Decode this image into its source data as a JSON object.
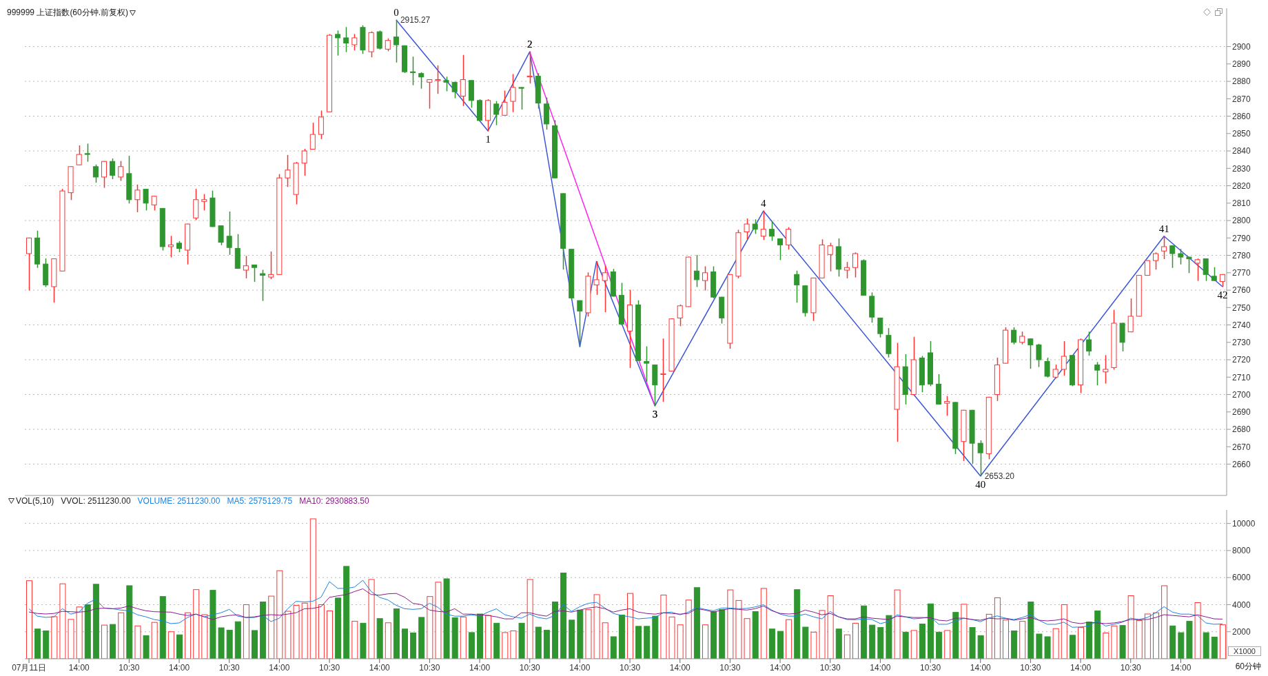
{
  "chart_data": [
    {
      "type": "candlestick",
      "title": "999999 上证指数(60分钟.前复权)",
      "annotations": [
        {
          "text": "0",
          "y": 2915.27
        },
        {
          "text": "1",
          "y": 2851.5
        },
        {
          "text": "2",
          "y": 2897
        },
        {
          "text": "3",
          "y": 2693.5
        },
        {
          "text": "4",
          "y": 2805.5
        },
        {
          "text": "40",
          "y": 2653.2
        },
        {
          "text": "41",
          "y": 2791
        },
        {
          "text": "42",
          "y": 2762
        }
      ],
      "ohlc": [
        [
          2781,
          2790,
          2760,
          2790
        ],
        [
          2790,
          2794,
          2773,
          2775
        ],
        [
          2775,
          2778,
          2762,
          2763
        ],
        [
          2762,
          2778,
          2753,
          2778
        ],
        [
          2771,
          2818,
          2771,
          2817
        ],
        [
          2816,
          2831,
          2812,
          2831
        ],
        [
          2832,
          2843,
          2832,
          2838
        ],
        [
          2838.5,
          2844,
          2834,
          2838
        ],
        [
          2831,
          2832,
          2822,
          2825
        ],
        [
          2825,
          2834,
          2819,
          2834
        ],
        [
          2834,
          2835.5,
          2824,
          2826
        ],
        [
          2825,
          2834,
          2823,
          2831
        ],
        [
          2827,
          2837,
          2810,
          2812
        ],
        [
          2812,
          2820.5,
          2805,
          2817.5
        ],
        [
          2818,
          2818,
          2806,
          2810
        ],
        [
          2809,
          2814,
          2806,
          2814
        ],
        [
          2807,
          2807,
          2783,
          2785
        ],
        [
          2785,
          2791,
          2779,
          2786
        ],
        [
          2787,
          2788,
          2782,
          2784
        ],
        [
          2783,
          2798,
          2775,
          2798
        ],
        [
          2801.5,
          2818,
          2800.5,
          2812
        ],
        [
          2811,
          2815,
          2806,
          2812
        ],
        [
          2813,
          2817,
          2796.5,
          2796.5
        ],
        [
          2797,
          2797,
          2786,
          2787.5
        ],
        [
          2791,
          2805,
          2780.5,
          2784.5
        ],
        [
          2784,
          2792,
          2772.5,
          2772.5
        ],
        [
          2771.5,
          2779.5,
          2767,
          2774
        ],
        [
          2774.5,
          2774.5,
          2765,
          2773
        ],
        [
          2769.5,
          2771.5,
          2754,
          2768.5
        ],
        [
          2767.5,
          2782,
          2766.5,
          2769
        ],
        [
          2769,
          2826.5,
          2769,
          2824.5
        ],
        [
          2824.5,
          2837.5,
          2819.5,
          2829
        ],
        [
          2815,
          2833.5,
          2809.5,
          2833
        ],
        [
          2833,
          2841,
          2826,
          2840
        ],
        [
          2841,
          2856,
          2841,
          2849.5
        ],
        [
          2849.5,
          2863,
          2847,
          2859.5
        ],
        [
          2862.5,
          2907,
          2862.5,
          2906.5
        ],
        [
          2907,
          2909,
          2895,
          2905
        ],
        [
          2905,
          2911,
          2897,
          2902
        ],
        [
          2901,
          2907,
          2898,
          2905
        ],
        [
          2911,
          2912,
          2896,
          2898
        ],
        [
          2897,
          2908.5,
          2894,
          2908
        ],
        [
          2908.5,
          2909,
          2898.5,
          2899
        ],
        [
          2898.5,
          2904.5,
          2897.5,
          2903.5
        ],
        [
          2905.5,
          2915.27,
          2891,
          2901
        ],
        [
          2900.5,
          2900.5,
          2885,
          2885.5
        ],
        [
          2885.5,
          2894,
          2878,
          2885
        ],
        [
          2884.5,
          2885,
          2876,
          2882.5
        ],
        [
          2879.5,
          2881,
          2864.5,
          2881
        ],
        [
          2880.5,
          2889,
          2873,
          2881
        ],
        [
          2880.5,
          2882.5,
          2874.5,
          2879.5
        ],
        [
          2879.5,
          2879.5,
          2870.5,
          2874
        ],
        [
          2871.5,
          2895,
          2866,
          2881
        ],
        [
          2880.5,
          2880.5,
          2865,
          2869
        ],
        [
          2869,
          2869.5,
          2857.5,
          2857.5
        ],
        [
          2857.5,
          2869.5,
          2851.5,
          2869
        ],
        [
          2867,
          2868.5,
          2855,
          2861
        ],
        [
          2860.5,
          2874.5,
          2860.5,
          2868
        ],
        [
          2868.5,
          2884,
          2862.5,
          2876.5
        ],
        [
          2876.5,
          2876.5,
          2864,
          2876
        ],
        [
          2882.5,
          2897,
          2879,
          2883
        ],
        [
          2883,
          2884.5,
          2864.5,
          2867.5
        ],
        [
          2867,
          2870.5,
          2852.5,
          2855.5
        ],
        [
          2854.5,
          2857.5,
          2824.5,
          2824.5
        ],
        [
          2815.5,
          2815.5,
          2772,
          2784
        ],
        [
          2783.5,
          2783.5,
          2755.5,
          2755.5
        ],
        [
          2754,
          2754,
          2727.5,
          2748
        ],
        [
          2747,
          2770,
          2745,
          2768
        ],
        [
          2763,
          2776.5,
          2757.5,
          2766
        ],
        [
          2765.5,
          2774,
          2747.5,
          2770
        ],
        [
          2770.5,
          2772,
          2756.5,
          2756.5
        ],
        [
          2757,
          2764,
          2740.5,
          2740.5
        ],
        [
          2736.5,
          2760,
          2715.5,
          2751.5
        ],
        [
          2751.5,
          2754,
          2719.5,
          2719.5
        ],
        [
          2719,
          2727.5,
          2707.5,
          2718
        ],
        [
          2717,
          2717,
          2693.5,
          2705.5
        ],
        [
          2711.5,
          2732,
          2696,
          2712
        ],
        [
          2713.5,
          2743.5,
          2713.5,
          2743.5
        ],
        [
          2744,
          2751.5,
          2739.5,
          2751
        ],
        [
          2750.5,
          2779,
          2750.5,
          2779
        ],
        [
          2771,
          2780,
          2762,
          2766
        ],
        [
          2765.5,
          2773.5,
          2760,
          2770
        ],
        [
          2770.5,
          2773.5,
          2755.5,
          2756
        ],
        [
          2756,
          2756,
          2741,
          2744
        ],
        [
          2729.5,
          2769,
          2726.5,
          2769
        ],
        [
          2768,
          2794.5,
          2767,
          2793
        ],
        [
          2793.5,
          2801,
          2789.5,
          2798
        ],
        [
          2798,
          2800.5,
          2792.5,
          2795
        ],
        [
          2791,
          2805.5,
          2789,
          2795
        ],
        [
          2795,
          2799.5,
          2788.5,
          2791
        ],
        [
          2789.5,
          2789.5,
          2777.5,
          2786
        ],
        [
          2786,
          2796,
          2783.5,
          2795
        ],
        [
          2769,
          2771,
          2753,
          2763
        ],
        [
          2762.5,
          2762.5,
          2745,
          2747
        ],
        [
          2747,
          2767,
          2742.5,
          2767
        ],
        [
          2767,
          2789,
          2767,
          2786
        ],
        [
          2780.5,
          2787,
          2771,
          2785.5
        ],
        [
          2785,
          2789.5,
          2768,
          2772
        ],
        [
          2771.5,
          2776,
          2767,
          2773
        ],
        [
          2773,
          2781.5,
          2767.5,
          2781
        ],
        [
          2777,
          2777.5,
          2757,
          2757
        ],
        [
          2756.5,
          2758.5,
          2741.5,
          2744.5
        ],
        [
          2744,
          2744,
          2733,
          2735
        ],
        [
          2734,
          2738,
          2721.5,
          2723.5
        ],
        [
          2691.5,
          2729.5,
          2673,
          2716
        ],
        [
          2716,
          2723,
          2694.5,
          2700
        ],
        [
          2700,
          2733,
          2700,
          2720
        ],
        [
          2721,
          2722,
          2701.5,
          2705.5
        ],
        [
          2724,
          2730.5,
          2705,
          2706
        ],
        [
          2706,
          2711.5,
          2694.5,
          2694.5
        ],
        [
          2695,
          2699,
          2688,
          2696
        ],
        [
          2695.5,
          2695.5,
          2666,
          2669
        ],
        [
          2673,
          2691,
          2662,
          2691
        ],
        [
          2691,
          2691,
          2660.5,
          2672
        ],
        [
          2672,
          2673.5,
          2653.2,
          2666.5
        ],
        [
          2666,
          2698.5,
          2663,
          2698.5
        ],
        [
          2700,
          2721,
          2696.5,
          2717
        ],
        [
          2718,
          2738.5,
          2718,
          2737
        ],
        [
          2737,
          2738.5,
          2729,
          2730
        ],
        [
          2730,
          2736,
          2729,
          2733.5
        ],
        [
          2732,
          2732,
          2715,
          2728.5
        ],
        [
          2728.5,
          2729,
          2716,
          2720
        ],
        [
          2719,
          2721,
          2710,
          2710.5
        ],
        [
          2710,
          2717,
          2709.5,
          2714.5
        ],
        [
          2714.5,
          2730.5,
          2711,
          2722
        ],
        [
          2722.5,
          2722.5,
          2705,
          2705.5
        ],
        [
          2705.5,
          2732,
          2701,
          2731.5
        ],
        [
          2731.5,
          2736,
          2722.5,
          2725
        ],
        [
          2717,
          2718.5,
          2705.5,
          2714
        ],
        [
          2713,
          2722.5,
          2706.5,
          2714.5
        ],
        [
          2715.5,
          2748.5,
          2714.5,
          2741
        ],
        [
          2741,
          2741,
          2725,
          2730
        ],
        [
          2736,
          2755,
          2736,
          2745
        ],
        [
          2745,
          2768.5,
          2745,
          2768.5
        ],
        [
          2768.5,
          2777,
          2768.5,
          2777
        ],
        [
          2777,
          2781.5,
          2772,
          2781
        ],
        [
          2782.5,
          2791,
          2778,
          2785
        ],
        [
          2785.5,
          2785.5,
          2773,
          2781
        ],
        [
          2781,
          2783.5,
          2775,
          2779
        ],
        [
          2779,
          2779,
          2770,
          2778
        ],
        [
          2775.5,
          2778,
          2765.5,
          2777.5
        ],
        [
          2778,
          2778,
          2765.5,
          2769
        ],
        [
          2768,
          2773,
          2765.5,
          2765.5
        ],
        [
          2765,
          2769,
          2762,
          2769
        ]
      ],
      "colors": [
        "#ff3232",
        "#2f962f",
        "#2f962f",
        "#ff3232",
        "#ff3232",
        "#ff3232",
        "#ff3232",
        "#2f962f",
        "#2f962f",
        "#ff3232",
        "#2f962f",
        "#ff3232",
        "#2f962f",
        "#ff3232",
        "#2f962f",
        "#ff3232",
        "#2f962f",
        "#ff3232",
        "#2f962f",
        "#ff3232",
        "#ff3232",
        "#ff3232",
        "#2f962f",
        "#2f962f",
        "#2f962f",
        "#2f962f",
        "#ff3232",
        "#2f962f",
        "#2f962f",
        "#ff3232",
        "#ff3232",
        "#ff3232",
        "#ff3232",
        "#ff3232",
        "#ff3232",
        "#ff3232",
        "#ff3232",
        "#2f962f",
        "#2f962f",
        "#ff3232",
        "#2f962f",
        "#ff3232",
        "#2f962f",
        "#ff3232",
        "#2f962f",
        "#2f962f",
        "#2f962f",
        "#2f962f",
        "#ff3232",
        "#ff3232",
        "#2f962f",
        "#2f962f",
        "#ff3232",
        "#2f962f",
        "#2f962f",
        "#ff3232",
        "#2f962f",
        "#ff3232",
        "#ff3232",
        "#2f962f",
        "#ff3232",
        "#2f962f",
        "#2f962f",
        "#2f962f",
        "#2f962f",
        "#2f962f",
        "#2f962f",
        "#ff3232",
        "#ff3232",
        "#ff3232",
        "#2f962f",
        "#2f962f",
        "#ff3232",
        "#2f962f",
        "#2f962f",
        "#2f962f",
        "#ff3232",
        "#ff3232",
        "#ff3232",
        "#ff3232",
        "#2f962f",
        "#ff3232",
        "#2f962f",
        "#2f962f",
        "#ff3232",
        "#ff3232",
        "#ff3232",
        "#2f962f",
        "#ff3232",
        "#2f962f",
        "#2f962f",
        "#ff3232",
        "#2f962f",
        "#2f962f",
        "#ff3232",
        "#ff3232",
        "#ff3232",
        "#2f962f",
        "#ff3232",
        "#ff3232",
        "#2f962f",
        "#2f962f",
        "#2f962f",
        "#2f962f",
        "#ff3232",
        "#2f962f",
        "#ff3232",
        "#2f962f",
        "#2f962f",
        "#2f962f",
        "#ff3232",
        "#2f962f",
        "#ff3232",
        "#2f962f",
        "#2f962f",
        "#ff3232",
        "#ff3232",
        "#ff3232",
        "#2f962f",
        "#ff3232",
        "#2f962f",
        "#2f962f",
        "#2f962f",
        "#ff3232",
        "#ff3232",
        "#2f962f",
        "#ff3232",
        "#2f962f",
        "#2f962f",
        "#ff3232",
        "#ff3232",
        "#2f962f",
        "#ff3232",
        "#ff3232",
        "#ff3232",
        "#ff3232",
        "#ff3232",
        "#2f962f",
        "#2f962f",
        "#2f962f",
        "#ff3232",
        "#2f962f",
        "#2f962f",
        "#ff3232"
      ],
      "value_labels": [
        null,
        null,
        null,
        null,
        null,
        null,
        null,
        null,
        null,
        null,
        null,
        null,
        null,
        null,
        null,
        null,
        null,
        null,
        null,
        null,
        null,
        null,
        null,
        null,
        null,
        null,
        null,
        null,
        null,
        null,
        null,
        null,
        null,
        null,
        null,
        null,
        null,
        null,
        null,
        null,
        null,
        null,
        null,
        null,
        "2915.27",
        null,
        null,
        null,
        null,
        null,
        null,
        null,
        null,
        null,
        null,
        null,
        null,
        null,
        null,
        null,
        null,
        null,
        null,
        null,
        null,
        null,
        null,
        null,
        null,
        null,
        null,
        null,
        null,
        null,
        null,
        null,
        null,
        null,
        null,
        null,
        null,
        null,
        null,
        null,
        null,
        null,
        null,
        null,
        null,
        null,
        null,
        null,
        null,
        null,
        null,
        null,
        null,
        null,
        null,
        null,
        null,
        null,
        null,
        null,
        null,
        null,
        null,
        null,
        null,
        null,
        null,
        null,
        null,
        null,
        "2653.20",
        null,
        null,
        null,
        null,
        null,
        null,
        null,
        null,
        null,
        null,
        null,
        null,
        null,
        null,
        null,
        null,
        null,
        null,
        null,
        null,
        null,
        null,
        null,
        null,
        null,
        null,
        null,
        null,
        null
      ],
      "series": [
        {
          "type": "line",
          "color": "#3a55d8",
          "values": [
            null,
            null,
            null,
            null,
            null,
            null,
            null,
            null,
            null,
            null,
            null,
            null,
            null,
            null,
            null,
            null,
            null,
            null,
            null,
            null,
            null,
            null,
            null,
            null,
            null,
            null,
            null,
            null,
            null,
            null,
            null,
            null,
            null,
            null,
            null,
            null,
            null,
            null,
            null,
            null,
            null,
            null,
            null,
            null,
            2915.27,
            null,
            null,
            null,
            null,
            null,
            null,
            null,
            null,
            null,
            null,
            2851.5,
            null,
            null,
            null,
            null,
            2897,
            null,
            null,
            null,
            null,
            null,
            2727.5,
            null,
            2776.5,
            null,
            null,
            null,
            null,
            null,
            null,
            2693.5,
            null,
            null,
            null,
            null,
            null,
            null,
            null,
            null,
            null,
            null,
            null,
            null,
            2805.5,
            null,
            null,
            null,
            null,
            null,
            null,
            null,
            null,
            null,
            null,
            null,
            null,
            null,
            null,
            null,
            null,
            null,
            null,
            null,
            null,
            null,
            null,
            null,
            null,
            null,
            2653.2,
            null,
            null,
            null,
            null,
            null,
            null,
            null,
            null,
            null,
            null,
            null,
            null,
            null,
            null,
            null,
            null,
            null,
            null,
            null,
            null,
            null,
            2791,
            null,
            null,
            null,
            null,
            null,
            null,
            2762
          ]
        },
        {
          "type": "line",
          "color": "#ff22ee",
          "values": [
            null,
            null,
            null,
            null,
            null,
            null,
            null,
            null,
            null,
            null,
            null,
            null,
            null,
            null,
            null,
            null,
            null,
            null,
            null,
            null,
            null,
            null,
            null,
            null,
            null,
            null,
            null,
            null,
            null,
            null,
            null,
            null,
            null,
            null,
            null,
            null,
            null,
            null,
            null,
            null,
            null,
            null,
            null,
            null,
            null,
            null,
            null,
            null,
            null,
            null,
            null,
            null,
            null,
            null,
            null,
            null,
            null,
            null,
            null,
            null,
            2897,
            null,
            null,
            null,
            null,
            null,
            null,
            null,
            null,
            null,
            null,
            null,
            null,
            null,
            null,
            2693.5,
            null,
            null,
            null,
            null,
            null,
            null,
            null,
            null,
            null,
            null,
            null,
            null,
            null,
            null,
            null,
            null,
            null,
            null,
            null,
            null,
            null,
            null,
            null,
            null,
            null,
            null,
            null,
            null,
            null,
            null,
            null,
            null,
            null,
            null,
            null,
            null,
            null,
            null,
            null,
            null,
            null,
            null,
            null,
            null,
            null,
            null,
            null,
            null,
            null,
            null,
            null,
            null,
            null,
            null,
            null,
            null,
            null,
            null,
            null,
            null,
            null,
            null,
            null,
            null,
            null,
            null,
            null,
            null
          ]
        }
      ],
      "ylim": [
        2642,
        2922
      ],
      "yticks": [
        2660,
        2670,
        2680,
        2690,
        2700,
        2710,
        2720,
        2730,
        2740,
        2750,
        2760,
        2770,
        2780,
        2790,
        2800,
        2810,
        2820,
        2830,
        2840,
        2850,
        2860,
        2870,
        2880,
        2890,
        2900
      ],
      "grid": "y",
      "tick_labels": "y"
    },
    {
      "type": "bar",
      "title": "VOL(5,10)",
      "xlabel": "60分钟",
      "ylabel": "X1000",
      "annotations": [
        "VVOL: 2511230.00",
        "VOLUME: 2511230.00"
      ],
      "categories": [
        "07月11日",
        null,
        null,
        null,
        null,
        null,
        "14:00",
        null,
        null,
        null,
        null,
        null,
        "10:30",
        null,
        null,
        null,
        null,
        null,
        "14:00",
        null,
        null,
        null,
        null,
        null,
        "10:30",
        null,
        null,
        null,
        null,
        null,
        "14:00",
        null,
        null,
        null,
        null,
        null,
        "10:30",
        null,
        null,
        null,
        null,
        null,
        "14:00",
        null,
        null,
        null,
        null,
        null,
        "10:30",
        null,
        null,
        null,
        null,
        null,
        "14:00",
        null,
        null,
        null,
        null,
        null,
        "10:30",
        null,
        null,
        null,
        null,
        null,
        "14:00",
        null,
        null,
        null,
        null,
        null,
        "10:30",
        null,
        null,
        null,
        null,
        null,
        "14:00",
        null,
        null,
        null,
        null,
        null,
        "10:30",
        null,
        null,
        null,
        null,
        null,
        "14:00",
        null,
        null,
        null,
        null,
        null,
        "10:30",
        null,
        null,
        null,
        null,
        null,
        "14:00",
        null,
        null,
        null,
        null,
        null,
        "10:30",
        null,
        null,
        null,
        null,
        null,
        "14:00",
        null,
        null,
        null,
        null,
        null,
        "10:30",
        null,
        null,
        null,
        null,
        null,
        "14:00",
        null,
        null,
        null,
        null,
        null,
        "10:30",
        null,
        null,
        null,
        null,
        null,
        "14:00",
        null,
        null,
        null,
        null,
        null
      ],
      "series": [
        {
          "type": "bar",
          "values": [
            5770,
            2200,
            2060,
            3110,
            5540,
            2910,
            3830,
            4000,
            5510,
            2490,
            2540,
            3400,
            5400,
            2430,
            1710,
            2690,
            4600,
            2000,
            1770,
            3400,
            5110,
            3260,
            5060,
            2290,
            2110,
            2740,
            4000,
            2090,
            4200,
            4630,
            6510,
            3510,
            3940,
            4110,
            10340,
            4000,
            3540,
            4490,
            6830,
            2770,
            2630,
            5860,
            2970,
            2660,
            3690,
            2200,
            1910,
            3060,
            4600,
            5660,
            5910,
            3030,
            3090,
            1940,
            3310,
            3200,
            2630,
            1940,
            2060,
            2630,
            5860,
            2340,
            2110,
            4200,
            6340,
            2860,
            3600,
            3630,
            4740,
            2660,
            1630,
            3230,
            4830,
            2400,
            2400,
            3150,
            4710,
            3090,
            2510,
            4340,
            5260,
            2510,
            3490,
            3630,
            5090,
            4310,
            2970,
            3490,
            5200,
            2200,
            2030,
            2890,
            5110,
            2340,
            1970,
            3570,
            4660,
            2200,
            1770,
            2630,
            3910,
            2490,
            2310,
            3200,
            5090,
            1970,
            2090,
            2570,
            4060,
            1970,
            2090,
            3430,
            4030,
            2310,
            1710,
            3290,
            4510,
            2860,
            2060,
            2770,
            4200,
            1830,
            1630,
            2230,
            4000,
            1740,
            2310,
            2710,
            3540,
            1910,
            2430,
            2460,
            4660,
            2830,
            3310,
            3400,
            5400,
            2430,
            1930,
            2770,
            4150,
            1930,
            1600,
            2511
          ],
          "colors": [
            "#ff3232",
            "#2f962f",
            "#2f962f",
            "#ff3232",
            "#ff3232",
            "#ff3232",
            "#ff3232",
            "#2f962f",
            "#2f962f",
            "#ff3232",
            "#2f962f",
            "#ff3232",
            "#2f962f",
            "#ff3232",
            "#2f962f",
            "#ff3232",
            "#2f962f",
            "#ff3232",
            "#2f962f",
            "#ff3232",
            "#ff3232",
            "#ff3232",
            "#2f962f",
            "#2f962f",
            "#2f962f",
            "#2f962f",
            "#ff3232",
            "#2f962f",
            "#2f962f",
            "#ff3232",
            "#ff3232",
            "#ff3232",
            "#ff3232",
            "#ff3232",
            "#ff3232",
            "#ff3232",
            "#ff3232",
            "#2f962f",
            "#2f962f",
            "#ff3232",
            "#2f962f",
            "#ff3232",
            "#2f962f",
            "#ff3232",
            "#2f962f",
            "#2f962f",
            "#2f962f",
            "#2f962f",
            "#ff3232",
            "#ff3232",
            "#2f962f",
            "#2f962f",
            "#ff3232",
            "#2f962f",
            "#2f962f",
            "#ff3232",
            "#2f962f",
            "#ff3232",
            "#ff3232",
            "#2f962f",
            "#ff3232",
            "#2f962f",
            "#2f962f",
            "#2f962f",
            "#2f962f",
            "#2f962f",
            "#2f962f",
            "#ff3232",
            "#ff3232",
            "#ff3232",
            "#2f962f",
            "#2f962f",
            "#ff3232",
            "#2f962f",
            "#2f962f",
            "#2f962f",
            "#ff3232",
            "#ff3232",
            "#ff3232",
            "#ff3232",
            "#2f962f",
            "#ff3232",
            "#2f962f",
            "#2f962f",
            "#ff3232",
            "#ff3232",
            "#ff3232",
            "#2f962f",
            "#ff3232",
            "#2f962f",
            "#2f962f",
            "#ff3232",
            "#2f962f",
            "#2f962f",
            "#ff3232",
            "#ff3232",
            "#ff3232",
            "#2f962f",
            "#ff3232",
            "#ff3232",
            "#2f962f",
            "#2f962f",
            "#2f962f",
            "#2f962f",
            "#ff3232",
            "#2f962f",
            "#ff3232",
            "#2f962f",
            "#2f962f",
            "#2f962f",
            "#ff3232",
            "#2f962f",
            "#ff3232",
            "#2f962f",
            "#2f962f",
            "#ff3232",
            "#ff3232",
            "#ff3232",
            "#2f962f",
            "#ff3232",
            "#2f962f",
            "#2f962f",
            "#2f962f",
            "#ff3232",
            "#ff3232",
            "#2f962f",
            "#ff3232",
            "#2f962f",
            "#2f962f",
            "#ff3232",
            "#ff3232",
            "#2f962f",
            "#ff3232",
            "#ff3232",
            "#ff3232",
            "#ff3232",
            "#ff3232",
            "#2f962f",
            "#2f962f",
            "#2f962f",
            "#ff3232",
            "#2f962f",
            "#2f962f",
            "#ff3232"
          ]
        },
        {
          "type": "line",
          "name": "MA5: 2575129.75",
          "color": "#1e82e0",
          "values": [
            3690,
            3150,
            3060,
            3100,
            3700,
            3300,
            3450,
            4100,
            4400,
            3750,
            3700,
            3600,
            3550,
            3250,
            3100,
            2900,
            2800,
            2600,
            2650,
            3050,
            3300,
            3100,
            3250,
            3400,
            3650,
            3150,
            3050,
            3050,
            3200,
            2750,
            3000,
            3700,
            4250,
            4200,
            4250,
            4550,
            5700,
            5200,
            5200,
            5300,
            5800,
            4970,
            4540,
            4350,
            3950,
            3700,
            3650,
            3700,
            4100,
            3800,
            3300,
            3150,
            3150,
            3250,
            3150,
            3450,
            3690,
            3260,
            3100,
            3000,
            3300,
            3050,
            2950,
            3200,
            4000,
            3500,
            3850,
            4100,
            4170,
            3750,
            3350,
            3200,
            3100,
            2950,
            3000,
            3050,
            3400,
            3450,
            3250,
            3450,
            3800,
            3650,
            3550,
            3750,
            3750,
            3700,
            3720,
            3830,
            4000,
            3600,
            3300,
            3150,
            3150,
            3300,
            3100,
            2950,
            3500,
            3100,
            2900,
            2880,
            2950,
            2900,
            2600,
            2750,
            3250,
            3100,
            2950,
            3000,
            3100,
            2550,
            2550,
            2780,
            3000,
            2900,
            2740,
            3000,
            3170,
            3000,
            2900,
            3050,
            3260,
            2850,
            2550,
            2550,
            2700,
            2330,
            2350,
            2420,
            2800,
            2420,
            2550,
            2700,
            3000,
            2900,
            3050,
            3400,
            3850,
            3450,
            3300,
            3300,
            3200,
            2650,
            2550,
            2575
          ]
        },
        {
          "type": "line",
          "name": "MA10: 2930883.50",
          "color": "#8b1a8b",
          "values": [
            3460,
            3350,
            3310,
            3350,
            3500,
            3480,
            3450,
            3500,
            3700,
            3740,
            3700,
            3750,
            3900,
            3700,
            3550,
            3480,
            3460,
            3450,
            3300,
            3200,
            3300,
            3100,
            2900,
            3100,
            3200,
            3250,
            3050,
            3100,
            3200,
            3260,
            3220,
            3300,
            3400,
            3700,
            3720,
            3850,
            4540,
            4650,
            4740,
            4970,
            5170,
            4750,
            4700,
            4800,
            4830,
            4550,
            4100,
            4000,
            3600,
            3500,
            3450,
            3700,
            3300,
            3300,
            3250,
            3200,
            3100,
            2950,
            2950,
            3400,
            3400,
            3250,
            3150,
            3500,
            3540,
            3450,
            3600,
            3750,
            3830,
            3700,
            3450,
            3600,
            3700,
            3450,
            3350,
            3300,
            3400,
            3350,
            3300,
            3350,
            3700,
            3600,
            3450,
            3600,
            3700,
            3650,
            3600,
            3700,
            3900,
            3550,
            3350,
            3310,
            3350,
            3600,
            3450,
            3250,
            3350,
            3100,
            2950,
            2950,
            3100,
            3000,
            2950,
            2900,
            3150,
            3100,
            3050,
            3050,
            3030,
            2850,
            2800,
            3000,
            3000,
            2900,
            2850,
            3000,
            2950,
            2970,
            2850,
            2950,
            3060,
            2850,
            2800,
            2850,
            2950,
            2690,
            2600,
            2700,
            2650,
            2600,
            2650,
            2750,
            2900,
            2890,
            2900,
            3050,
            3260,
            3200,
            3150,
            3100,
            3250,
            3100,
            2950,
            2931
          ]
        }
      ],
      "ylim": [
        0,
        11000
      ],
      "yticks": [
        2000,
        4000,
        6000,
        8000,
        10000
      ],
      "grid": "y",
      "legend": "top left"
    }
  ]
}
